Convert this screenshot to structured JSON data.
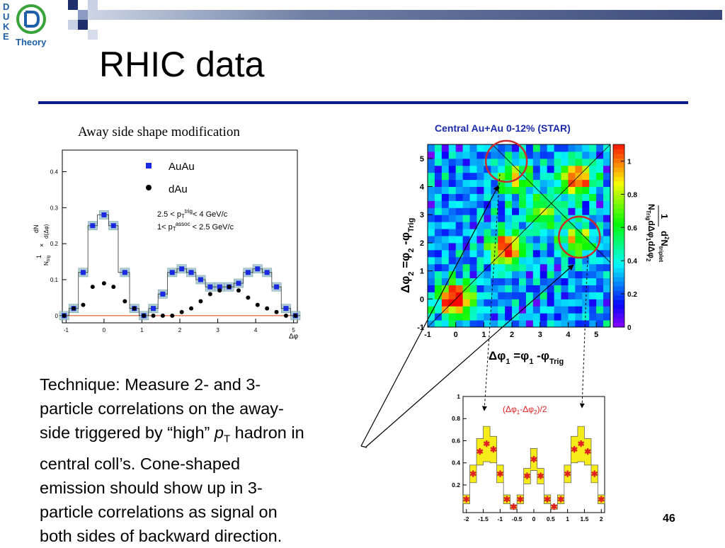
{
  "slide": {
    "title": "RHIC data",
    "slide_number": "46",
    "logo": {
      "letters": [
        "D",
        "U",
        "K",
        "E"
      ],
      "word": "Theory"
    },
    "technique_lines": [
      "Technique: Measure 2- and 3-",
      "particle correlations on the away-",
      "side triggered by “high” ",
      "central coll’s. Cone-shaped",
      "emission should show up in 3-",
      "particle correlations as signal on",
      "both sides of backward direction."
    ],
    "technique_pt": "p",
    "technique_pt_sub": "T",
    "technique_tail": " hadron in",
    "colors": {
      "title_rule": "#0b1a8a",
      "circle": "#cc2a2a",
      "auau": "#1a2ae0",
      "dau": "#000000",
      "ref_line": "#e85020",
      "band": "#9cc2c8",
      "yellow": "#f6ec1a"
    }
  },
  "chart_data": [
    {
      "type": "scatter",
      "title": "Away side shape modification",
      "xlabel": "Δφ",
      "xlim": [
        -1.1,
        5.1
      ],
      "ylim": [
        -0.02,
        0.46
      ],
      "xticks": [
        -1,
        0,
        1,
        2,
        3,
        4,
        5
      ],
      "yticks": [
        0,
        0.1,
        0.2,
        0.3,
        0.4
      ],
      "ytick_labels": [
        "0",
        "0.1",
        "0.2",
        "0.3",
        "0.4"
      ],
      "x": [
        -1.05,
        -0.8,
        -0.55,
        -0.3,
        0.0,
        0.25,
        0.55,
        0.8,
        1.05,
        1.3,
        1.55,
        1.8,
        2.05,
        2.3,
        2.55,
        2.8,
        3.05,
        3.3,
        3.55,
        3.8,
        4.05,
        4.3,
        4.55,
        4.8,
        5.05
      ],
      "series": [
        {
          "name": "AuAu",
          "marker": "square",
          "color": "#1a2ae0",
          "values": [
            0.0,
            0.02,
            0.12,
            0.25,
            0.28,
            0.25,
            0.12,
            0.02,
            0.0,
            0.02,
            0.06,
            0.12,
            0.13,
            0.12,
            0.1,
            0.08,
            0.08,
            0.08,
            0.09,
            0.12,
            0.13,
            0.12,
            0.08,
            0.02,
            0.0
          ],
          "band_halfwidth": 0.012
        },
        {
          "name": "dAu",
          "marker": "circle",
          "color": "#000000",
          "values": [
            0.0,
            0.02,
            0.03,
            0.08,
            0.09,
            0.08,
            0.04,
            0.02,
            0.0,
            0.0,
            0.0,
            0.0,
            0.01,
            0.02,
            0.04,
            0.06,
            0.07,
            0.08,
            0.07,
            0.05,
            0.03,
            0.02,
            0.01,
            0.0,
            0.0
          ]
        }
      ],
      "annotation_lines": [
        "2.5 < p",
        "T",
        "trig",
        "< 4 GeV/c",
        "1< p",
        "T",
        "assoc",
        " < 2.5 GeV/c"
      ]
    },
    {
      "type": "heatmap",
      "title": "Central Au+Au 0-12% (STAR)",
      "xlim": [
        -1,
        5.5
      ],
      "ylim": [
        -1,
        5.5
      ],
      "xticks": [
        -1,
        0,
        1,
        2,
        3,
        4,
        5
      ],
      "yticks": [
        -1,
        0,
        1,
        2,
        3,
        4,
        5
      ],
      "xlabel_parts": [
        "Δφ",
        "1",
        " =φ",
        "1",
        " -φ",
        "Trig"
      ],
      "ylabel_parts": [
        "Δφ",
        "2",
        " =φ",
        "2",
        " -φ",
        "Trig"
      ],
      "zlabel_parts": [
        "1",
        "N",
        "Trig",
        "dΔφ",
        "1",
        "dΔφ",
        "2",
        "d",
        "2",
        "N",
        "triplet"
      ],
      "zlim": [
        0,
        1.1
      ],
      "zticks": [
        0,
        0.2,
        0.4,
        0.6,
        0.8,
        1
      ],
      "zticks_labels": [
        "0",
        "0.2",
        "0.4",
        "0.6",
        "0.8",
        "1"
      ],
      "peaks": [
        [
          0.0,
          0.0,
          1.0
        ],
        [
          1.8,
          1.8,
          0.85
        ],
        [
          4.3,
          4.3,
          0.8
        ],
        [
          2.1,
          4.3,
          0.5
        ],
        [
          4.3,
          2.1,
          0.5
        ],
        [
          3.1,
          3.1,
          0.45
        ]
      ],
      "highlight_circles": [
        [
          1.8,
          4.9
        ],
        [
          4.4,
          2.2
        ]
      ]
    },
    {
      "type": "bar",
      "title": "(Δφ₁-Δφ₂)/2",
      "title_parts": [
        "(Δφ",
        "1",
        "-Δφ",
        "2",
        ")/2"
      ],
      "xlim": [
        -2.1,
        2.1
      ],
      "ylim": [
        -0.05,
        1.0
      ],
      "xticks": [
        -2,
        -1.5,
        -1,
        -0.5,
        0,
        0.5,
        1,
        1.5,
        2
      ],
      "xtick_labels": [
        "-2",
        "-1.5",
        "-1",
        "-0.5",
        "0",
        "0.5",
        "1",
        "1.5",
        "2"
      ],
      "yticks": [
        0.2,
        0.4,
        0.6,
        0.8,
        1
      ],
      "ytick_labels": [
        "0.2",
        "0.4",
        "0.6",
        "0.8",
        "1"
      ],
      "x": [
        -2.0,
        -1.8,
        -1.6,
        -1.4,
        -1.2,
        -1.0,
        -0.8,
        -0.6,
        -0.4,
        -0.2,
        0.0,
        0.2,
        0.4,
        0.6,
        0.8,
        1.0,
        1.2,
        1.4,
        1.6,
        1.8,
        2.0
      ],
      "series": [
        {
          "name": "",
          "marker": "star",
          "color": "#e02020",
          "values": [
            0.07,
            0.3,
            0.5,
            0.57,
            0.52,
            0.3,
            0.07,
            0.0,
            0.07,
            0.28,
            0.43,
            0.28,
            0.07,
            0.0,
            0.07,
            0.3,
            0.52,
            0.57,
            0.5,
            0.3,
            0.07
          ],
          "band_halfwidth": [
            0.04,
            0.08,
            0.12,
            0.16,
            0.12,
            0.08,
            0.04,
            0.02,
            0.04,
            0.07,
            0.1,
            0.07,
            0.04,
            0.02,
            0.04,
            0.08,
            0.12,
            0.16,
            0.12,
            0.08,
            0.04
          ]
        }
      ]
    }
  ]
}
